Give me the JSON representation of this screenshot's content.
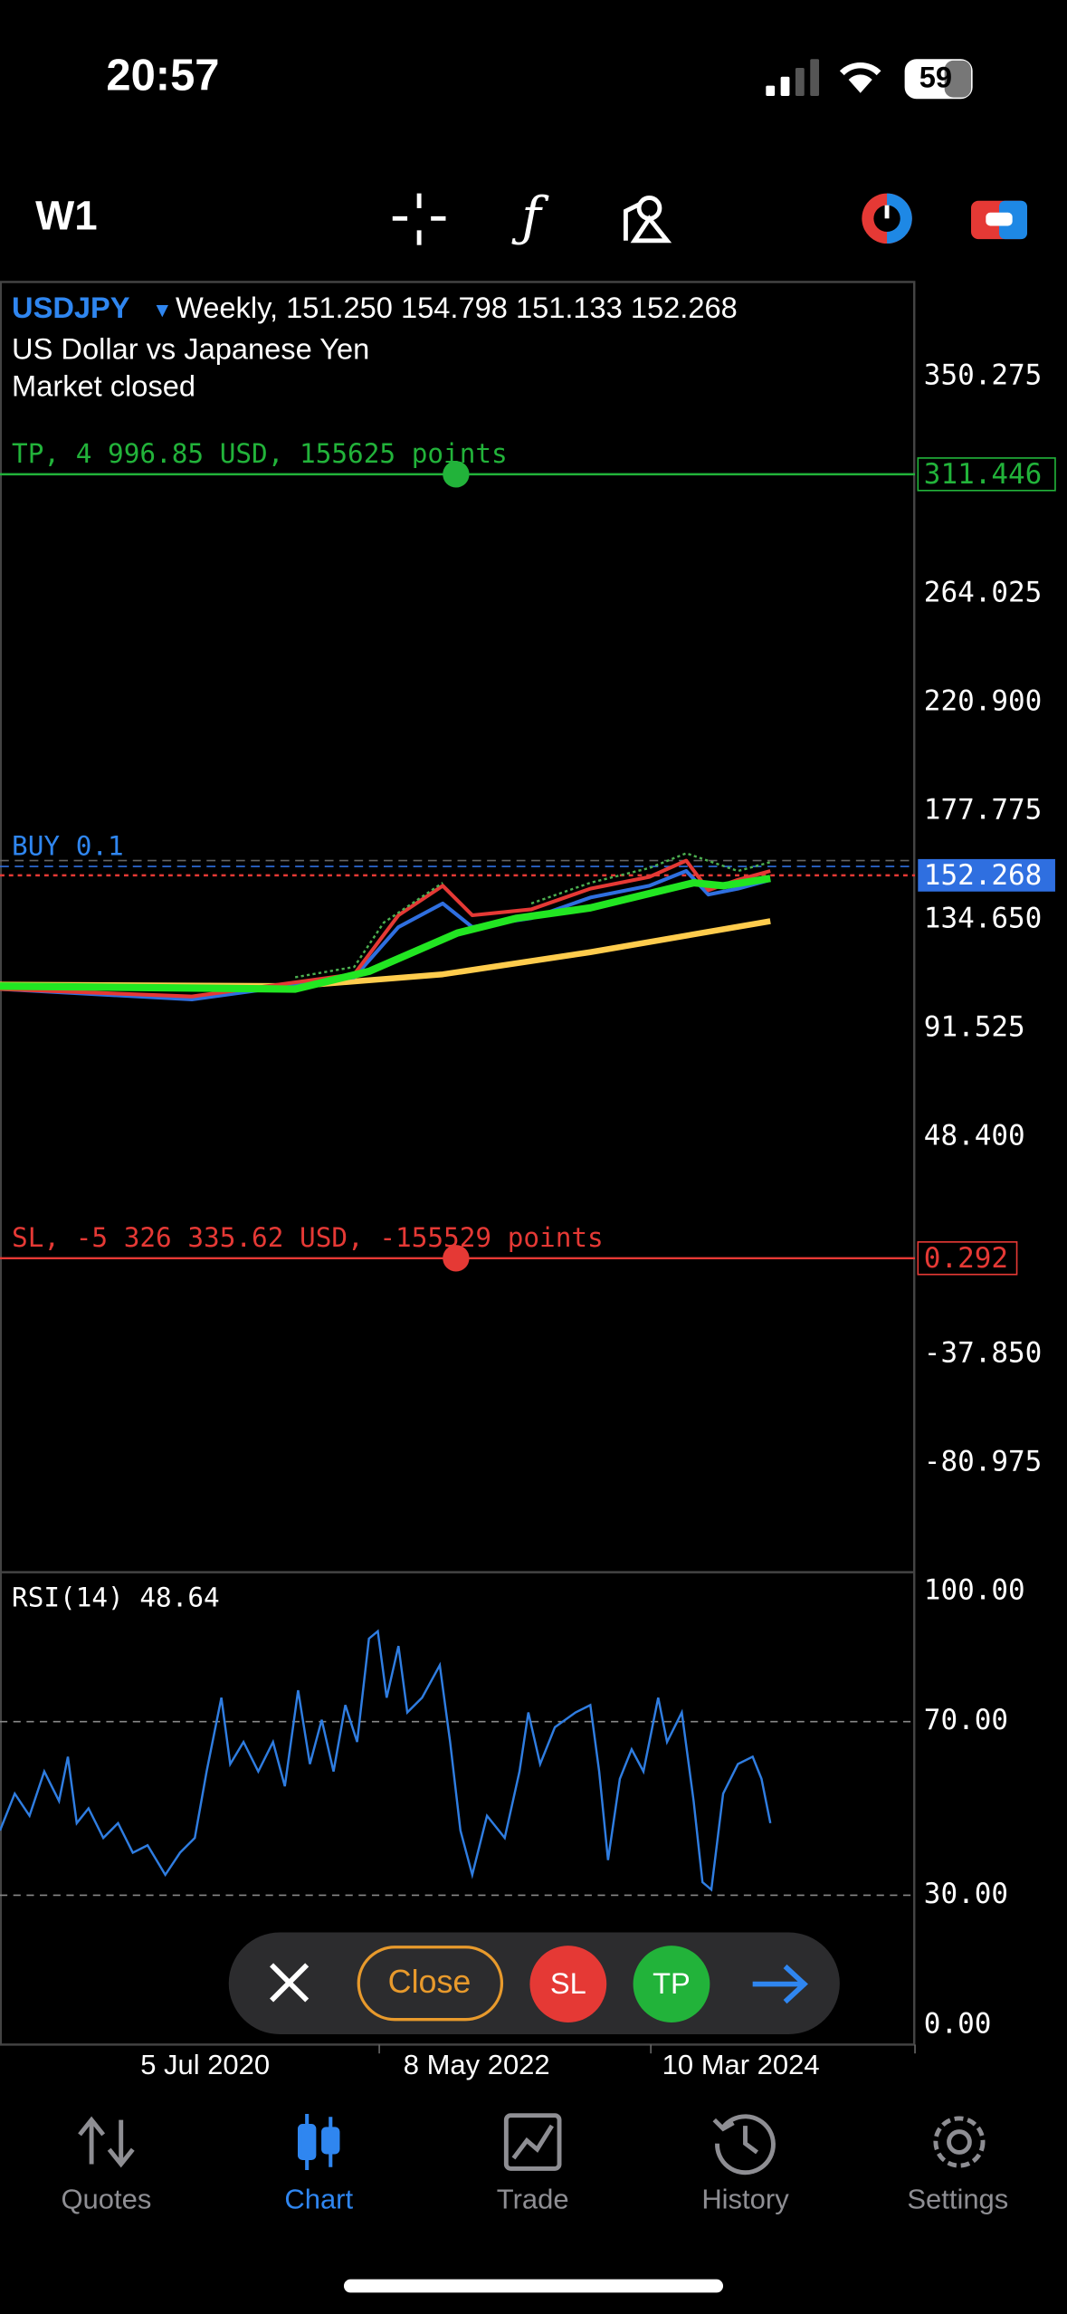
{
  "status": {
    "time": "20:57",
    "battery": "59"
  },
  "toolbar": {
    "timeframe": "W1"
  },
  "chart": {
    "symbol": "USDJPY",
    "header": "Weekly, 151.250 154.798 151.133 152.268",
    "description": "US Dollar vs Japanese Yen",
    "market_status": "Market closed",
    "tp": {
      "label": "TP, 4 996.85 USD, 155625 points",
      "price": 311.446
    },
    "sl": {
      "label": "SL, -5 326 335.62 USD, -155529 points",
      "price": 0.292
    },
    "order": "BUY 0.1",
    "current_price": 152.268,
    "price_ticks": [
      {
        "value": 350.275,
        "label": "350.275"
      },
      {
        "value": 264.025,
        "label": "264.025"
      },
      {
        "value": 220.9,
        "label": "220.900"
      },
      {
        "value": 177.775,
        "label": "177.775"
      },
      {
        "value": 134.65,
        "label": "134.650"
      },
      {
        "value": 91.525,
        "label": "91.525"
      },
      {
        "value": 48.4,
        "label": "48.400"
      },
      {
        "value": -37.85,
        "label": "-37.850"
      },
      {
        "value": -80.975,
        "label": "-80.975"
      }
    ],
    "rsi": {
      "label": "RSI(14) 48.64",
      "ticks": [
        {
          "value": 100,
          "label": "100.00"
        },
        {
          "value": 70,
          "label": "70.00"
        },
        {
          "value": 30,
          "label": "30.00"
        },
        {
          "value": 0,
          "label": "0.00"
        }
      ]
    },
    "dates": [
      "5 Jul 2020",
      "8 May 2022",
      "10 Mar 2024"
    ]
  },
  "actions": {
    "close": "Close",
    "sl": "SL",
    "tp": "TP"
  },
  "tabs": [
    "Quotes",
    "Chart",
    "Trade",
    "History",
    "Settings"
  ]
}
